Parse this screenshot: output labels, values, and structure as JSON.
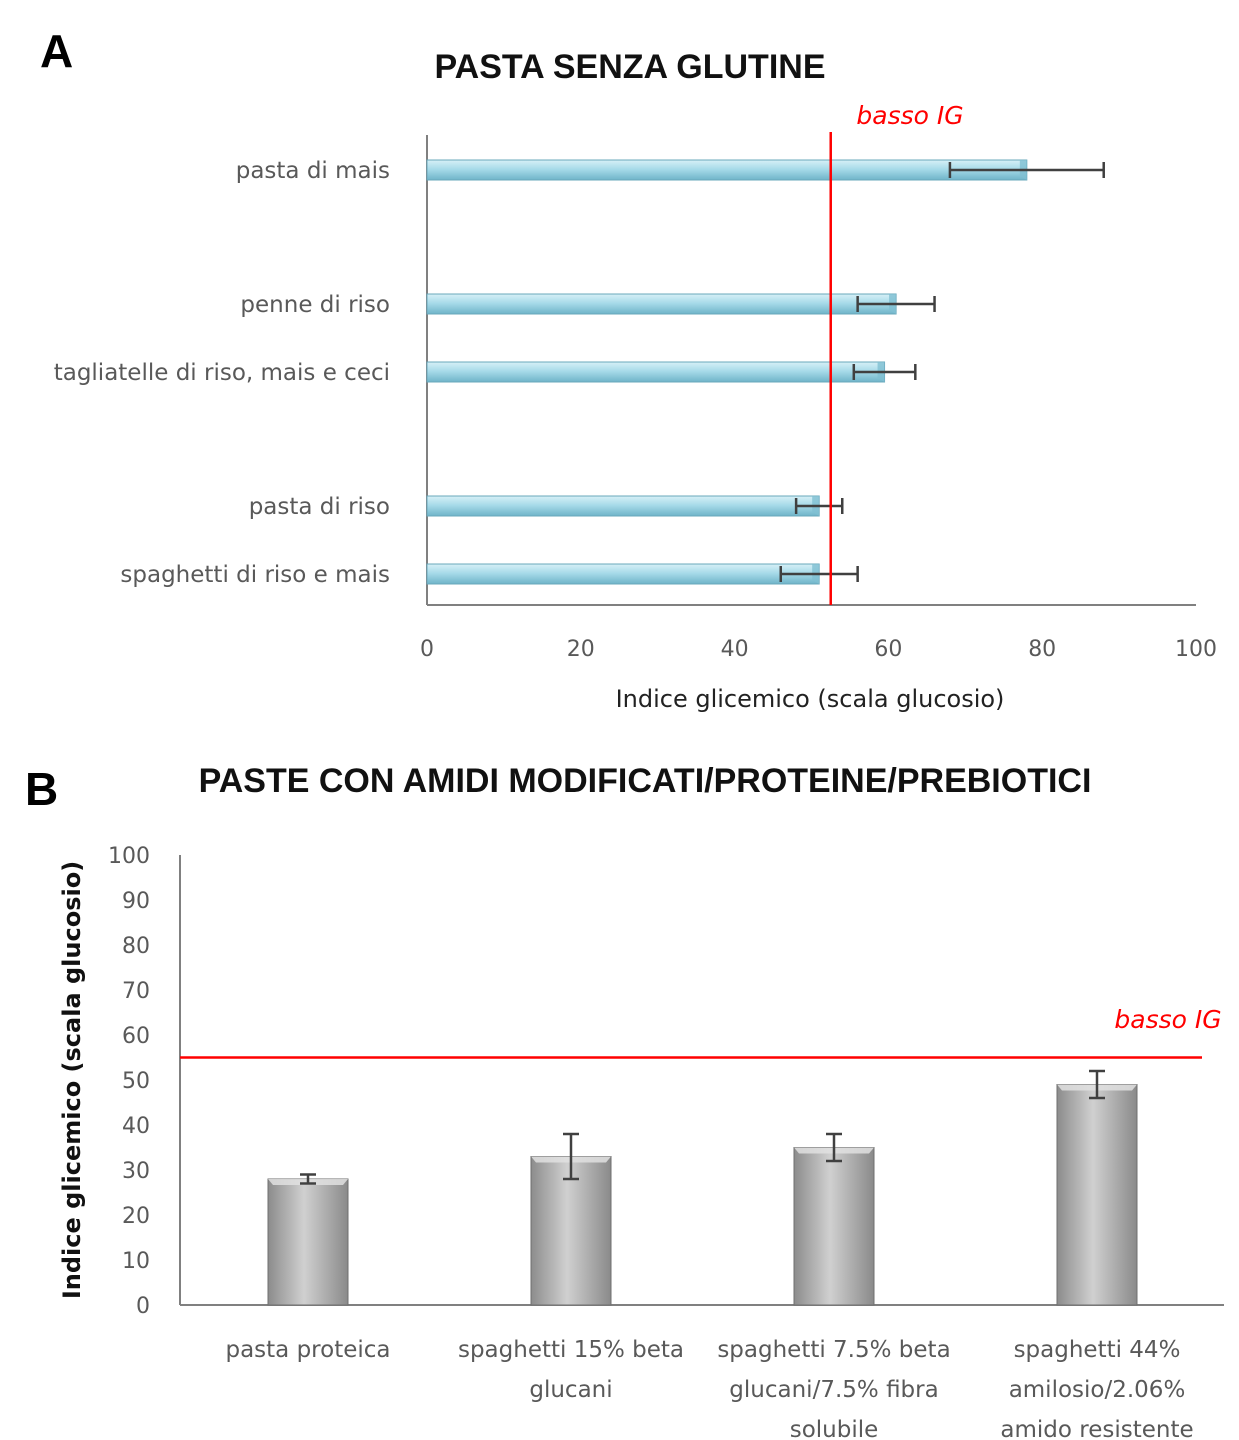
{
  "panels": {
    "a": {
      "letter": "A"
    },
    "b": {
      "letter": "B"
    }
  },
  "chart_data": [
    {
      "type": "bar",
      "orientation": "horizontal",
      "title": "PASTA SENZA GLUTINE",
      "xlabel": "Indice glicemico (scala glucosio)",
      "ylabel": "",
      "xlim": [
        0,
        100
      ],
      "xticks": [
        "0",
        "20",
        "40",
        "60",
        "80",
        "100"
      ],
      "categories": [
        "pasta di mais",
        "penne di riso",
        "tagliatelle di riso, mais e ceci",
        "pasta di riso",
        "spaghetti di riso e mais"
      ],
      "values": [
        78,
        61,
        59.5,
        51,
        51
      ],
      "errors": [
        10,
        5,
        4,
        3,
        5
      ],
      "reference_line": {
        "value": 52.5,
        "label": "basso IG",
        "color": "#ff0000"
      },
      "bar_color": "#9fd3e3",
      "grid": false,
      "legend": "none"
    },
    {
      "type": "bar",
      "orientation": "vertical",
      "title": "PASTE CON AMIDI MODIFICATI/PROTEINE/PREBIOTICI",
      "xlabel": "",
      "ylabel": "Indice glicemico (scala glucosio)",
      "ylim": [
        0,
        100
      ],
      "yticks": [
        "0",
        "10",
        "20",
        "30",
        "40",
        "50",
        "60",
        "70",
        "80",
        "90",
        "100"
      ],
      "categories": [
        [
          "pasta proteica"
        ],
        [
          "spaghetti 15% beta",
          "glucani"
        ],
        [
          "spaghetti 7.5% beta",
          "glucani/7.5% fibra",
          "solubile"
        ],
        [
          "spaghetti 44%",
          "amilosio/2.06%",
          "amido resistente"
        ]
      ],
      "values": [
        28,
        33,
        35,
        49
      ],
      "errors": [
        1,
        5,
        3,
        3
      ],
      "reference_line": {
        "value": 55,
        "label": "basso IG",
        "color": "#ff0000"
      },
      "bar_color": "#b3b3b3",
      "grid": false,
      "legend": "none"
    }
  ]
}
